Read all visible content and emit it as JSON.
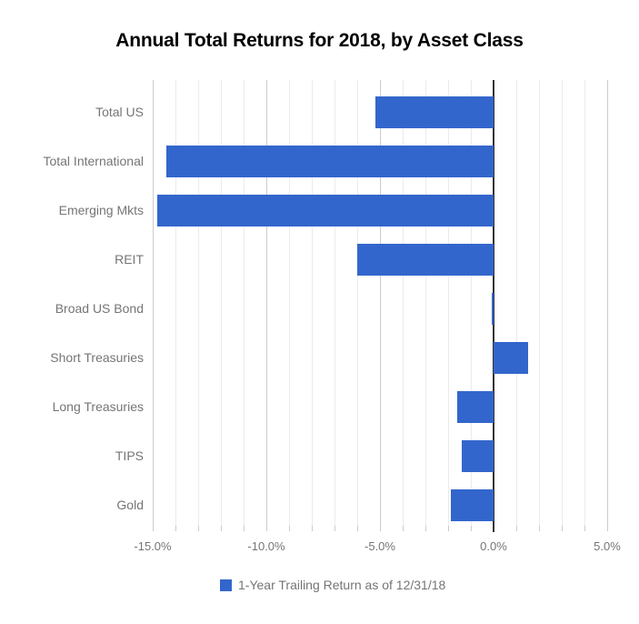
{
  "chart_data": {
    "type": "bar",
    "orientation": "horizontal",
    "title": "Annual Total Returns for 2018, by Asset Class",
    "categories": [
      "Total US",
      "Total International",
      "Emerging Mkts",
      "REIT",
      "Broad US Bond",
      "Short Treasuries",
      "Long Treasuries",
      "TIPS",
      "Gold"
    ],
    "series": [
      {
        "name": "1-Year Trailing Return as of 12/31/18",
        "values": [
          -5.2,
          -14.4,
          -14.8,
          -6.0,
          -0.1,
          1.5,
          -1.6,
          -1.4,
          -1.9
        ]
      }
    ],
    "value_unit": "%",
    "xlim": [
      -15,
      5
    ],
    "x_tick_values": [
      -15,
      -10,
      -5,
      0,
      5
    ],
    "x_tick_labels": [
      "-15.0%",
      "-10.0%",
      "-5.0%",
      "0.0%",
      "5.0%"
    ],
    "minor_grid_step": 1,
    "grid": true,
    "legend_position": "bottom",
    "colors": {
      "bar": "#3366cc",
      "zero_line": "#333333",
      "major_gridline": "#cccccc",
      "minor_gridline": "#ebebeb",
      "axis_text": "#757575",
      "title_text": "#000000",
      "background": "#ffffff"
    }
  }
}
